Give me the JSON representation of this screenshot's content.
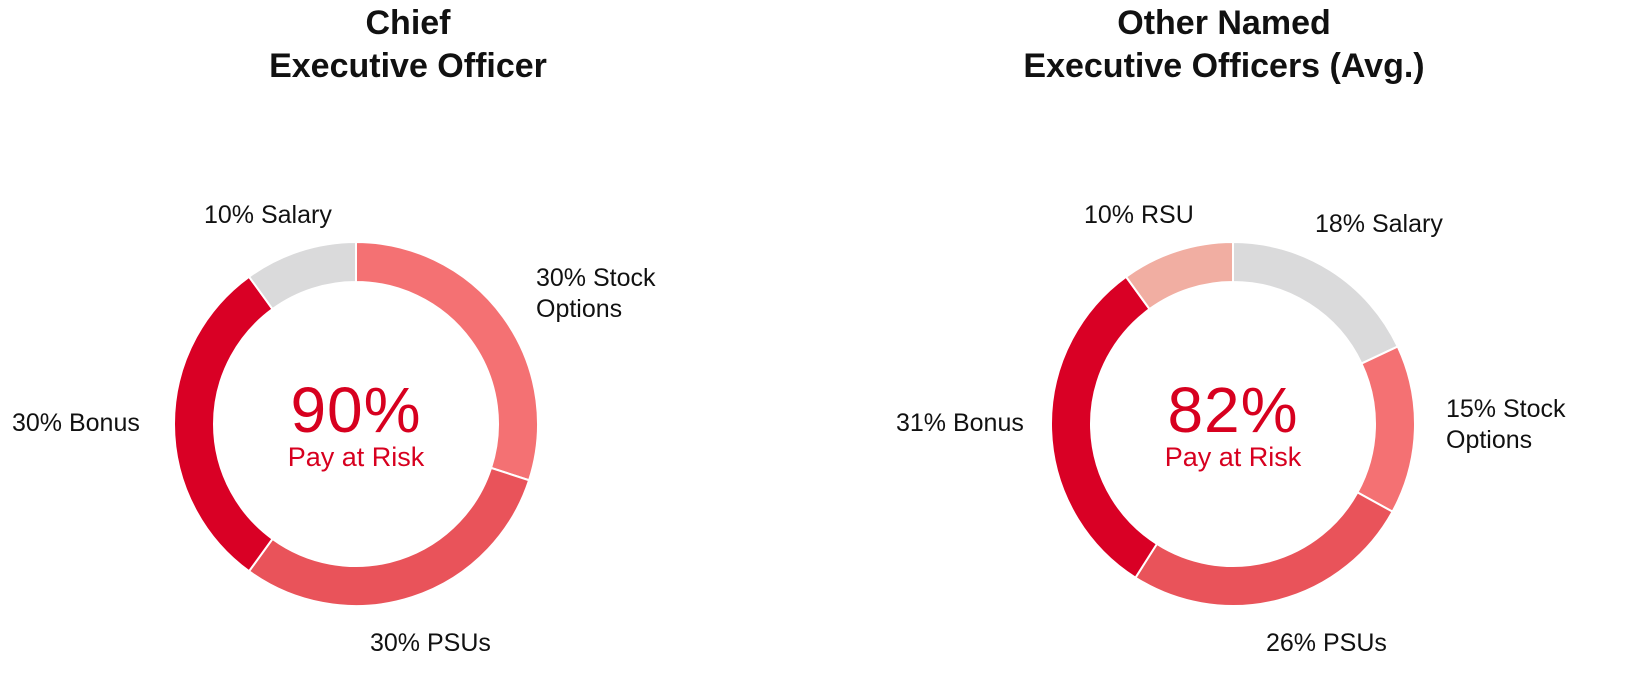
{
  "chart_data": [
    {
      "type": "pie",
      "title": "Chief Executive Officer",
      "title_lines": [
        "Chief",
        "Executive Officer"
      ],
      "center_value": "90%",
      "center_caption": "Pay at Risk",
      "slices": [
        {
          "name": "Stock Options",
          "value": 30,
          "label": "30% Stock\nOptions",
          "color": "#f47173"
        },
        {
          "name": "PSUs",
          "value": 30,
          "label": "30% PSUs",
          "color": "#e9535a"
        },
        {
          "name": "Bonus",
          "value": 30,
          "label": "30% Bonus",
          "color": "#d90025"
        },
        {
          "name": "Salary",
          "value": 10,
          "label": "10% Salary",
          "color": "#dadadb"
        }
      ]
    },
    {
      "type": "pie",
      "title": "Other Named Executive Officers (Avg.)",
      "title_lines": [
        "Other Named",
        "Executive Officers (Avg.)"
      ],
      "center_value": "82%",
      "center_caption": "Pay at Risk",
      "slices": [
        {
          "name": "Salary",
          "value": 18,
          "label": "18% Salary",
          "color": "#dadadb"
        },
        {
          "name": "Stock Options",
          "value": 15,
          "label": "15% Stock\nOptions",
          "color": "#f47173"
        },
        {
          "name": "PSUs",
          "value": 26,
          "label": "26% PSUs",
          "color": "#e9535a"
        },
        {
          "name": "Bonus",
          "value": 31,
          "label": "31% Bonus",
          "color": "#d90025"
        },
        {
          "name": "RSU",
          "value": 10,
          "label": "10% RSU",
          "color": "#f1aea2"
        }
      ]
    }
  ]
}
